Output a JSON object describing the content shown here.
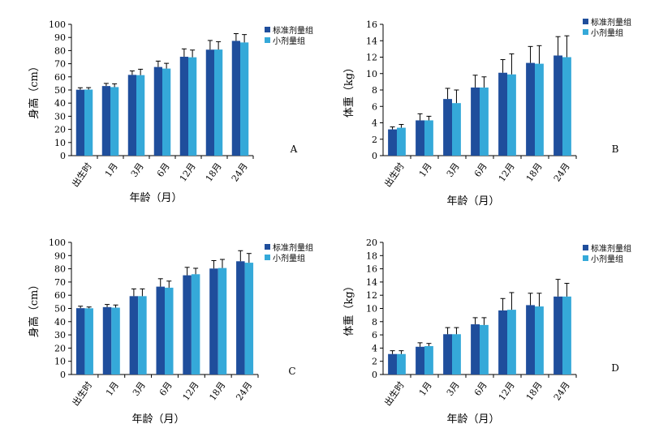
{
  "legend": [
    "标准剂量组",
    "小剂量组"
  ],
  "colors": {
    "standard": "#1f4e9c",
    "low": "#35a9d9",
    "axis": "#000000",
    "error": "#000000"
  },
  "chart_data": [
    {
      "type": "bar",
      "panel": "A",
      "categories": [
        "出生时",
        "1月",
        "3月",
        "6月",
        "12月",
        "18月",
        "24月"
      ],
      "xlabel": "年龄（月）",
      "ylabel": "身高（cm）",
      "ylim": [
        0,
        100
      ],
      "yticks": [
        0,
        10,
        20,
        30,
        40,
        50,
        60,
        70,
        80,
        90,
        100
      ],
      "legend_position": "top-right",
      "series": [
        {
          "name": "标准剂量组",
          "values": [
            50.2,
            53.0,
            61.5,
            67.5,
            75.3,
            80.7,
            87.4
          ],
          "errors": [
            1.5,
            2.0,
            3.0,
            4.5,
            6.0,
            7.0,
            5.5
          ]
        },
        {
          "name": "小剂量组",
          "values": [
            50.3,
            52.2,
            61.3,
            66.3,
            74.9,
            80.8,
            86.2
          ],
          "errors": [
            1.5,
            2.5,
            4.5,
            4.0,
            5.5,
            6.0,
            6.0
          ]
        }
      ]
    },
    {
      "type": "bar",
      "panel": "B",
      "categories": [
        "出生时",
        "1月",
        "3月",
        "6月",
        "12月",
        "18月",
        "24月"
      ],
      "xlabel": "年龄（月）",
      "ylabel": "体重（kg）",
      "ylim": [
        0,
        16
      ],
      "yticks": [
        0,
        2,
        4,
        6,
        8,
        10,
        12,
        14,
        16
      ],
      "legend_position": "top-right",
      "series": [
        {
          "name": "标准剂量组",
          "values": [
            3.2,
            4.3,
            6.9,
            8.3,
            10.1,
            11.3,
            12.2
          ],
          "errors": [
            0.3,
            0.8,
            1.3,
            1.5,
            1.6,
            2.0,
            2.3
          ]
        },
        {
          "name": "小剂量组",
          "values": [
            3.4,
            4.3,
            6.4,
            8.3,
            9.9,
            11.2,
            12.0
          ],
          "errors": [
            0.4,
            0.5,
            1.6,
            1.3,
            2.5,
            2.2,
            2.6
          ]
        }
      ]
    },
    {
      "type": "bar",
      "panel": "C",
      "categories": [
        "出生时",
        "1月",
        "3月",
        "6月",
        "12月",
        "18月",
        "24月"
      ],
      "xlabel": "年龄（月）",
      "ylabel": "身高（cm）",
      "ylim": [
        0,
        100
      ],
      "yticks": [
        0,
        10,
        20,
        30,
        40,
        50,
        60,
        70,
        80,
        90,
        100
      ],
      "legend_position": "top-right",
      "series": [
        {
          "name": "标准剂量组",
          "values": [
            50.2,
            51.0,
            59.3,
            66.5,
            75.1,
            80.2,
            85.7
          ],
          "errors": [
            1.5,
            2.0,
            5.5,
            6.0,
            6.0,
            6.0,
            8.0
          ]
        },
        {
          "name": "小剂量组",
          "values": [
            50.1,
            50.6,
            59.3,
            65.7,
            75.9,
            80.6,
            84.6
          ],
          "errors": [
            1.0,
            2.0,
            5.5,
            5.0,
            4.5,
            6.5,
            7.0
          ]
        }
      ]
    },
    {
      "type": "bar",
      "panel": "D",
      "categories": [
        "出生时",
        "1月",
        "3月",
        "6月",
        "12月",
        "18月",
        "24月"
      ],
      "xlabel": "年龄（月）",
      "ylabel": "体重（kg）",
      "ylim": [
        0,
        20
      ],
      "yticks": [
        0,
        2,
        4,
        6,
        8,
        10,
        12,
        14,
        16,
        18,
        20
      ],
      "legend_position": "top-right",
      "series": [
        {
          "name": "标准剂量组",
          "values": [
            3.1,
            4.2,
            6.1,
            7.6,
            9.7,
            10.5,
            11.8
          ],
          "errors": [
            0.5,
            0.6,
            1.0,
            1.0,
            1.8,
            1.8,
            2.6
          ]
        },
        {
          "name": "小剂量组",
          "values": [
            3.1,
            4.3,
            6.1,
            7.5,
            9.8,
            10.3,
            11.8
          ],
          "errors": [
            0.5,
            0.4,
            1.0,
            1.1,
            2.6,
            2.0,
            2.0
          ]
        }
      ]
    }
  ]
}
